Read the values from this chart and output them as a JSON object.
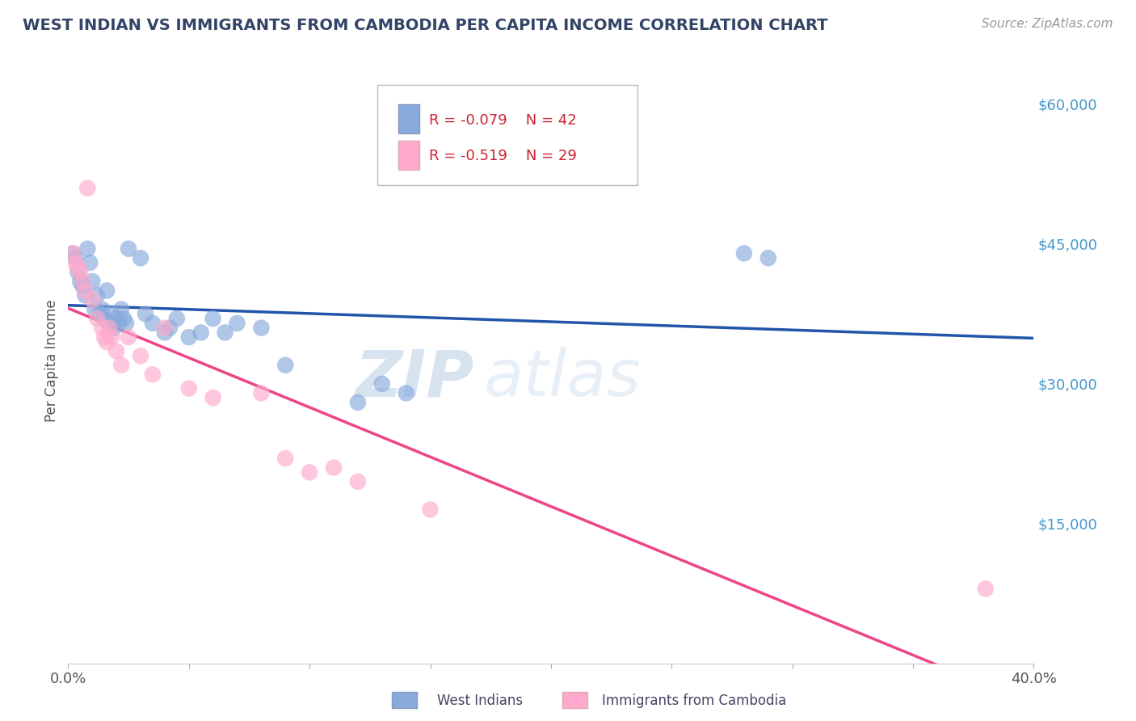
{
  "title": "WEST INDIAN VS IMMIGRANTS FROM CAMBODIA PER CAPITA INCOME CORRELATION CHART",
  "source": "Source: ZipAtlas.com",
  "ylabel": "Per Capita Income",
  "xlim": [
    0.0,
    0.4
  ],
  "ylim": [
    0,
    65000
  ],
  "yticks": [
    0,
    15000,
    30000,
    45000,
    60000
  ],
  "ytick_labels": [
    "",
    "$15,000",
    "$30,000",
    "$45,000",
    "$60,000"
  ],
  "background_color": "#ffffff",
  "grid_color": "#d0d8e8",
  "blue_color": "#88aadd",
  "pink_color": "#ffaacc",
  "blue_line_color": "#2255aa",
  "pink_line_color": "#ee4488",
  "legend_blue_r": "R = -0.079",
  "legend_blue_n": "N = 42",
  "legend_pink_r": "R = -0.519",
  "legend_pink_n": "N = 29",
  "blue_scatter_x": [
    0.002,
    0.003,
    0.004,
    0.005,
    0.006,
    0.007,
    0.008,
    0.009,
    0.01,
    0.011,
    0.012,
    0.013,
    0.014,
    0.015,
    0.016,
    0.017,
    0.018,
    0.019,
    0.02,
    0.021,
    0.022,
    0.023,
    0.024,
    0.025,
    0.03,
    0.032,
    0.035,
    0.04,
    0.042,
    0.045,
    0.05,
    0.055,
    0.06,
    0.065,
    0.07,
    0.08,
    0.09,
    0.12,
    0.13,
    0.14,
    0.28,
    0.29
  ],
  "blue_scatter_y": [
    44000,
    43500,
    42000,
    41000,
    40500,
    39500,
    44500,
    43000,
    41000,
    38000,
    39500,
    37500,
    38000,
    37000,
    40000,
    36500,
    37500,
    36000,
    37000,
    36500,
    38000,
    37000,
    36500,
    44500,
    43500,
    37500,
    36500,
    35500,
    36000,
    37000,
    35000,
    35500,
    37000,
    35500,
    36500,
    36000,
    32000,
    28000,
    30000,
    29000,
    44000,
    43500
  ],
  "pink_scatter_x": [
    0.002,
    0.003,
    0.004,
    0.005,
    0.006,
    0.007,
    0.008,
    0.01,
    0.012,
    0.014,
    0.015,
    0.016,
    0.017,
    0.018,
    0.02,
    0.022,
    0.025,
    0.03,
    0.035,
    0.04,
    0.05,
    0.06,
    0.08,
    0.09,
    0.1,
    0.11,
    0.12,
    0.15,
    0.38
  ],
  "pink_scatter_y": [
    44000,
    43000,
    42500,
    42000,
    41000,
    40000,
    51000,
    39000,
    37000,
    36000,
    35000,
    34500,
    36000,
    35000,
    33500,
    32000,
    35000,
    33000,
    31000,
    36000,
    29500,
    28500,
    29000,
    22000,
    20500,
    21000,
    19500,
    16500,
    8000
  ]
}
